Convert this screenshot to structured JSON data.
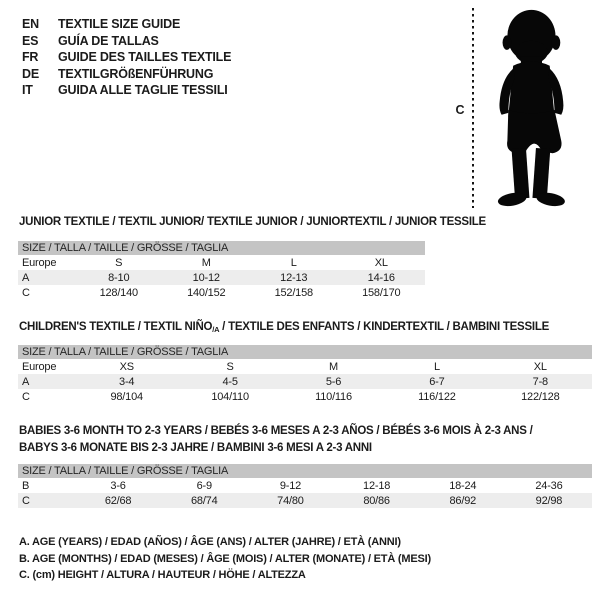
{
  "colors": {
    "ink": "#1b1b1b",
    "band": "#c4c4c4",
    "shade": "#ededed",
    "background": "#ffffff"
  },
  "languages": [
    {
      "code": "EN",
      "label": "TEXTILE SIZE GUIDE"
    },
    {
      "code": "ES",
      "label": "GUÍA DE TALLAS"
    },
    {
      "code": "FR",
      "label": "GUIDE DES TAILLES TEXTILE"
    },
    {
      "code": "DE",
      "label": "TEXTILGRÖßENFÜHRUNG"
    },
    {
      "code": "IT",
      "label": "GUIDA ALLE TAGLIE TESSILI"
    }
  ],
  "figure": {
    "measure_label": "C",
    "icon": "baby-silhouette-icon"
  },
  "tables": {
    "junior": {
      "title": "JUNIOR TEXTILE / TEXTIL JUNIOR/ TEXTILE JUNIOR / JUNIORTEXTIL / JUNIOR TESSILE",
      "size_header": "SIZE / TALLA / TAILLE / GRÖSSE / TAGLIA",
      "rows": [
        {
          "label": "Europe",
          "cells": [
            "S",
            "M",
            "L",
            "XL"
          ],
          "shaded": false
        },
        {
          "label": "A",
          "cells": [
            "8-10",
            "10-12",
            "12-13",
            "14-16"
          ],
          "shaded": true
        },
        {
          "label": "C",
          "cells": [
            "128/140",
            "140/152",
            "152/158",
            "158/170"
          ],
          "shaded": false
        }
      ]
    },
    "children": {
      "title_part1": "CHILDREN'S TEXTILE / TEXTIL NIÑO",
      "title_sub": "/A",
      "title_part2": " / TEXTILE DES ENFANTS / KINDERTEXTIL / BAMBINI TESSILE",
      "size_header": "SIZE / TALLA / TAILLE / GRÖSSE / TAGLIA",
      "rows": [
        {
          "label": "Europe",
          "cells": [
            "XS",
            "S",
            "M",
            "L",
            "XL"
          ],
          "shaded": false
        },
        {
          "label": "A",
          "cells": [
            "3-4",
            "4-5",
            "5-6",
            "6-7",
            "7-8"
          ],
          "shaded": true
        },
        {
          "label": "C",
          "cells": [
            "98/104",
            "104/110",
            "110/116",
            "116/122",
            "122/128"
          ],
          "shaded": false
        }
      ]
    },
    "babies": {
      "title_line1": "BABIES 3-6 MONTH TO 2-3 YEARS / BEBÉS 3-6 MESES A 2-3 AÑOS / BÉBÉS 3-6 MOIS À 2-3 ANS /",
      "title_line2": "BABYS 3-6 MONATE BIS 2-3 JAHRE / BAMBINI 3-6 MESI A 2-3 ANNI",
      "size_header": "SIZE / TALLA / TAILLE / GRÖSSE / TAGLIA",
      "rows": [
        {
          "label": "B",
          "cells": [
            "3-6",
            "6-9",
            "9-12",
            "12-18",
            "18-24",
            "24-36"
          ],
          "shaded": false
        },
        {
          "label": "C",
          "cells": [
            "62/68",
            "68/74",
            "74/80",
            "80/86",
            "86/92",
            "92/98"
          ],
          "shaded": true
        }
      ]
    }
  },
  "legend": [
    "A. AGE (YEARS) / EDAD (AÑOS) / ÂGE (ANS) / ALTER (JAHRE) / ETÀ (ANNI)",
    "B. AGE (MONTHS) / EDAD (MESES) / ÂGE (MOIS) / ALTER (MONATE) / ETÀ (MESI)",
    "C. (cm) HEIGHT / ALTURA / HAUTEUR / HÖHE / ALTEZZA"
  ]
}
